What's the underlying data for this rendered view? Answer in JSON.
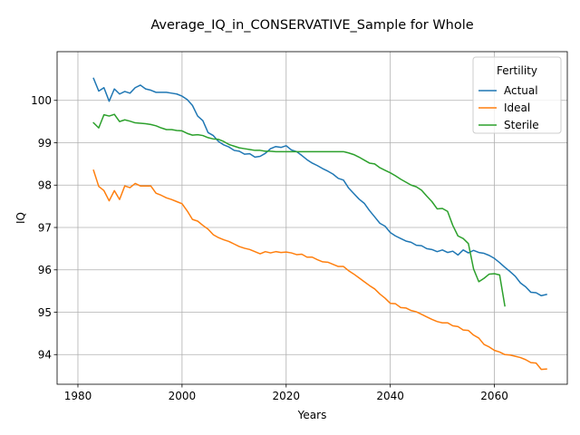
{
  "chart_data": {
    "type": "line",
    "title": "Average_IQ_in_CONSERVATIVE_Sample for Whole",
    "xlabel": "Years",
    "ylabel": "IQ",
    "xlim": [
      1976,
      2074
    ],
    "ylim": [
      93.3,
      101.15
    ],
    "xticks": [
      1980,
      2000,
      2020,
      2040,
      2060
    ],
    "yticks": [
      94,
      95,
      96,
      97,
      98,
      99,
      100
    ],
    "grid": true,
    "legend": {
      "title": "Fertility",
      "placement": "top-right"
    },
    "series": [
      {
        "name": "Actual",
        "color": "#1f77b4",
        "x": [
          1983,
          1984,
          1985,
          1986,
          1987,
          1988,
          1989,
          1990,
          1991,
          1992,
          1993,
          1994,
          1995,
          1996,
          1997,
          1998,
          1999,
          2000,
          2001,
          2002,
          2003,
          2004,
          2005,
          2006,
          2007,
          2008,
          2009,
          2010,
          2011,
          2012,
          2013,
          2014,
          2015,
          2016,
          2017,
          2018,
          2019,
          2020,
          2021,
          2022,
          2023,
          2024,
          2025,
          2026,
          2027,
          2028,
          2029,
          2030,
          2031,
          2032,
          2033,
          2034,
          2035,
          2036,
          2037,
          2038,
          2039,
          2040,
          2041,
          2042,
          2043,
          2044,
          2045,
          2046,
          2047,
          2048,
          2049,
          2050,
          2051,
          2052,
          2053,
          2054,
          2055,
          2056,
          2057,
          2058,
          2059,
          2060,
          2061,
          2062,
          2063,
          2064,
          2065,
          2066,
          2067,
          2068,
          2069,
          2070
        ],
        "values": [
          100.52,
          100.22,
          100.3,
          99.98,
          100.27,
          100.15,
          100.21,
          100.17,
          100.3,
          100.36,
          100.27,
          100.24,
          100.19,
          100.19,
          100.19,
          100.17,
          100.15,
          100.1,
          100.02,
          99.88,
          99.63,
          99.52,
          99.24,
          99.17,
          99.03,
          98.95,
          98.9,
          98.82,
          98.8,
          98.73,
          98.74,
          98.66,
          98.68,
          98.75,
          98.86,
          98.91,
          98.89,
          98.93,
          98.83,
          98.79,
          98.7,
          98.6,
          98.52,
          98.46,
          98.39,
          98.33,
          98.26,
          98.16,
          98.12,
          97.93,
          97.8,
          97.67,
          97.57,
          97.4,
          97.25,
          97.1,
          97.03,
          96.88,
          96.8,
          96.74,
          96.68,
          96.65,
          96.58,
          96.57,
          96.5,
          96.48,
          96.43,
          96.47,
          96.41,
          96.44,
          96.35,
          96.47,
          96.4,
          96.46,
          96.41,
          96.39,
          96.34,
          96.27,
          96.17,
          96.06,
          95.96,
          95.85,
          95.69,
          95.6,
          95.47,
          95.46,
          95.39,
          95.42
        ]
      },
      {
        "name": "Ideal",
        "color": "#ff7f0e",
        "x": [
          1983,
          1984,
          1985,
          1986,
          1987,
          1988,
          1989,
          1990,
          1991,
          1992,
          1993,
          1994,
          1995,
          1996,
          1997,
          1998,
          1999,
          2000,
          2001,
          2002,
          2003,
          2004,
          2005,
          2006,
          2007,
          2008,
          2009,
          2010,
          2011,
          2012,
          2013,
          2014,
          2015,
          2016,
          2017,
          2018,
          2019,
          2020,
          2021,
          2022,
          2023,
          2024,
          2025,
          2026,
          2027,
          2028,
          2029,
          2030,
          2031,
          2032,
          2033,
          2034,
          2035,
          2036,
          2037,
          2038,
          2039,
          2040,
          2041,
          2042,
          2043,
          2044,
          2045,
          2046,
          2047,
          2048,
          2049,
          2050,
          2051,
          2052,
          2053,
          2054,
          2055,
          2056,
          2057,
          2058,
          2059,
          2060,
          2061,
          2062,
          2063,
          2064,
          2065,
          2066,
          2067,
          2068,
          2069,
          2070
        ],
        "values": [
          98.35,
          97.97,
          97.87,
          97.63,
          97.87,
          97.66,
          97.98,
          97.94,
          98.04,
          97.98,
          97.98,
          97.98,
          97.81,
          97.76,
          97.7,
          97.66,
          97.61,
          97.56,
          97.39,
          97.19,
          97.15,
          97.05,
          96.96,
          96.83,
          96.76,
          96.71,
          96.67,
          96.61,
          96.55,
          96.51,
          96.48,
          96.43,
          96.38,
          96.43,
          96.4,
          96.43,
          96.41,
          96.42,
          96.4,
          96.36,
          96.37,
          96.3,
          96.3,
          96.24,
          96.19,
          96.18,
          96.13,
          96.08,
          96.08,
          95.98,
          95.9,
          95.81,
          95.72,
          95.63,
          95.55,
          95.43,
          95.33,
          95.21,
          95.2,
          95.11,
          95.1,
          95.04,
          95.01,
          94.95,
          94.89,
          94.83,
          94.78,
          94.75,
          94.75,
          94.68,
          94.66,
          94.58,
          94.57,
          94.46,
          94.39,
          94.24,
          94.18,
          94.1,
          94.06,
          94.0,
          93.99,
          93.96,
          93.93,
          93.88,
          93.81,
          93.8,
          93.65,
          93.66
        ]
      },
      {
        "name": "Sterile",
        "color": "#2ca02c",
        "x": [
          1983,
          1984,
          1985,
          1986,
          1987,
          1988,
          1989,
          1990,
          1991,
          1992,
          1993,
          1994,
          1995,
          1996,
          1997,
          1998,
          1999,
          2000,
          2001,
          2002,
          2003,
          2004,
          2005,
          2006,
          2007,
          2008,
          2009,
          2010,
          2011,
          2012,
          2013,
          2014,
          2015,
          2016,
          2017,
          2018,
          2019,
          2020,
          2021,
          2022,
          2023,
          2024,
          2025,
          2026,
          2027,
          2028,
          2029,
          2030,
          2031,
          2032,
          2033,
          2034,
          2035,
          2036,
          2037,
          2038,
          2039,
          2040,
          2041,
          2042,
          2043,
          2044,
          2045,
          2046,
          2047,
          2048,
          2049,
          2050,
          2051,
          2052,
          2053,
          2054,
          2055,
          2056,
          2057,
          2058,
          2059,
          2060,
          2061,
          2062
        ],
        "values": [
          99.47,
          99.35,
          99.66,
          99.63,
          99.67,
          99.5,
          99.54,
          99.51,
          99.47,
          99.46,
          99.45,
          99.43,
          99.4,
          99.35,
          99.31,
          99.31,
          99.29,
          99.28,
          99.22,
          99.18,
          99.19,
          99.17,
          99.12,
          99.09,
          99.08,
          99.03,
          98.96,
          98.92,
          98.88,
          98.86,
          98.84,
          98.82,
          98.82,
          98.8,
          98.8,
          98.79,
          98.79,
          98.79,
          98.79,
          98.79,
          98.79,
          98.79,
          98.79,
          98.79,
          98.79,
          98.79,
          98.79,
          98.79,
          98.79,
          98.76,
          98.72,
          98.66,
          98.59,
          98.52,
          98.5,
          98.41,
          98.35,
          98.29,
          98.22,
          98.14,
          98.07,
          98.0,
          97.96,
          97.88,
          97.74,
          97.61,
          97.44,
          97.45,
          97.38,
          97.05,
          96.8,
          96.74,
          96.62,
          96.02,
          95.72,
          95.8,
          95.9,
          95.91,
          95.88,
          95.15
        ]
      }
    ]
  }
}
